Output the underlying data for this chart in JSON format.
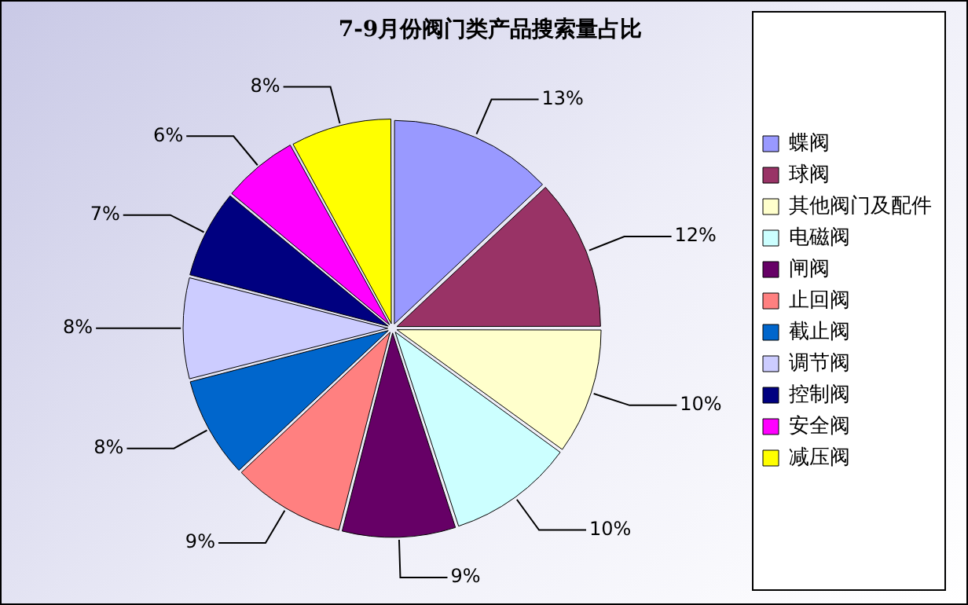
{
  "chart_data": {
    "type": "pie",
    "title": "7-9月份阀门类产品搜索量占比",
    "categories": [
      "蝶阀",
      "球阀",
      "其他阀门及配件",
      "电磁阀",
      "闸阀",
      "止回阀",
      "截止阀",
      "调节阀",
      "控制阀",
      "安全阀",
      "减压阀"
    ],
    "values": [
      13,
      12,
      10,
      10,
      9,
      9,
      8,
      8,
      7,
      6,
      8
    ],
    "value_labels": [
      "13%",
      "12%",
      "10%",
      "10%",
      "9%",
      "9%",
      "8%",
      "8%",
      "7%",
      "6%",
      "8%"
    ],
    "colors": [
      "#9999ff",
      "#993366",
      "#ffffcc",
      "#ccffff",
      "#660066",
      "#ff8080",
      "#0066cc",
      "#ccccff",
      "#000080",
      "#ff00ff",
      "#ffff00"
    ],
    "legend": "right"
  }
}
